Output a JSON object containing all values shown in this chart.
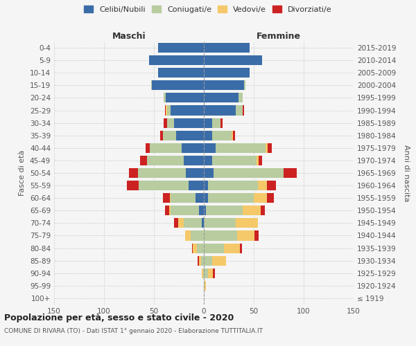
{
  "age_groups": [
    "100+",
    "95-99",
    "90-94",
    "85-89",
    "80-84",
    "75-79",
    "70-74",
    "65-69",
    "60-64",
    "55-59",
    "50-54",
    "45-49",
    "40-44",
    "35-39",
    "30-34",
    "25-29",
    "20-24",
    "15-19",
    "10-14",
    "5-9",
    "0-4"
  ],
  "birth_years": [
    "≤ 1919",
    "1920-1924",
    "1925-1929",
    "1930-1934",
    "1935-1939",
    "1940-1944",
    "1945-1949",
    "1950-1954",
    "1955-1959",
    "1960-1964",
    "1965-1969",
    "1970-1974",
    "1975-1979",
    "1980-1984",
    "1985-1989",
    "1990-1994",
    "1995-1999",
    "2000-2004",
    "2005-2009",
    "2010-2014",
    "2015-2019"
  ],
  "maschi": {
    "celibi": [
      0,
      0,
      0,
      0,
      0,
      0,
      2,
      5,
      8,
      15,
      18,
      20,
      22,
      28,
      30,
      33,
      38,
      52,
      46,
      55,
      46
    ],
    "coniugati": [
      0,
      0,
      1,
      3,
      7,
      13,
      18,
      28,
      25,
      50,
      48,
      37,
      32,
      13,
      7,
      4,
      2,
      1,
      0,
      0,
      0
    ],
    "vedovi": [
      0,
      0,
      1,
      2,
      4,
      6,
      6,
      2,
      1,
      0,
      0,
      0,
      0,
      0,
      0,
      1,
      0,
      0,
      0,
      0,
      0
    ],
    "divorziati": [
      0,
      0,
      0,
      1,
      1,
      0,
      4,
      4,
      7,
      12,
      9,
      7,
      4,
      3,
      3,
      1,
      0,
      0,
      0,
      0,
      0
    ]
  },
  "femmine": {
    "nubili": [
      0,
      0,
      0,
      0,
      0,
      0,
      0,
      2,
      4,
      4,
      10,
      8,
      12,
      8,
      8,
      32,
      35,
      40,
      46,
      58,
      46
    ],
    "coniugate": [
      0,
      1,
      4,
      8,
      20,
      33,
      32,
      37,
      46,
      50,
      70,
      45,
      50,
      20,
      9,
      7,
      4,
      2,
      0,
      0,
      0
    ],
    "vedove": [
      0,
      1,
      5,
      14,
      16,
      18,
      22,
      18,
      13,
      9,
      0,
      2,
      2,
      1,
      0,
      0,
      0,
      0,
      0,
      0,
      0
    ],
    "divorziate": [
      0,
      0,
      2,
      0,
      2,
      4,
      0,
      4,
      7,
      9,
      13,
      3,
      4,
      2,
      2,
      1,
      0,
      0,
      0,
      0,
      0
    ]
  },
  "colors": {
    "celibi": "#3a6ca8",
    "coniugati": "#b8cca0",
    "vedovi": "#f5c96a",
    "divorziati": "#cc2222"
  },
  "xlim": 150,
  "title": "Popolazione per età, sesso e stato civile - 2020",
  "subtitle": "COMUNE DI RIVARA (TO) - Dati ISTAT 1° gennaio 2020 - Elaborazione TUTTITALIA.IT",
  "ylabel_left": "Fasce di età",
  "ylabel_right": "Anni di nascita",
  "label_maschi": "Maschi",
  "label_femmine": "Femmine",
  "bg_color": "#f5f5f5"
}
